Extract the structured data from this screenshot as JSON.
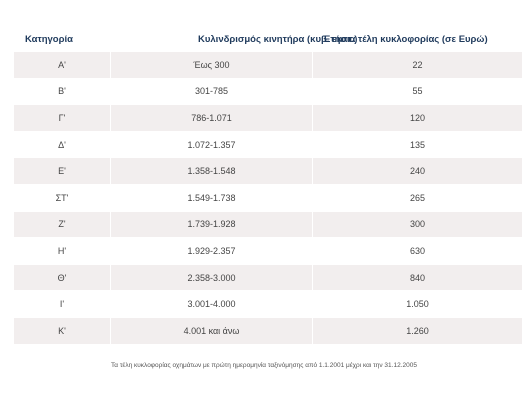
{
  "table": {
    "headers": {
      "category": "Κατηγορία",
      "engine": "Κυλινδρισμός κινητήρα (κυβ. εκατ.)",
      "fee": "Ετήσια τέλη κυκλοφορίας (σε Ευρώ)"
    },
    "rows": [
      {
        "category": "Α'",
        "engine": "Έως 300",
        "fee": "22"
      },
      {
        "category": "Β'",
        "engine": "301-785",
        "fee": "55"
      },
      {
        "category": "Γ'",
        "engine": "786-1.071",
        "fee": "120"
      },
      {
        "category": "Δ'",
        "engine": "1.072-1.357",
        "fee": "135"
      },
      {
        "category": "Ε'",
        "engine": "1.358-1.548",
        "fee": "240"
      },
      {
        "category": "ΣΤ'",
        "engine": "1.549-1.738",
        "fee": "265"
      },
      {
        "category": "Ζ'",
        "engine": "1.739-1.928",
        "fee": "300"
      },
      {
        "category": "Η'",
        "engine": "1.929-2.357",
        "fee": "630"
      },
      {
        "category": "Θ'",
        "engine": "2.358-3.000",
        "fee": "840"
      },
      {
        "category": "Ι'",
        "engine": "3.001-4.000",
        "fee": "1.050"
      },
      {
        "category": "Κ'",
        "engine": "4.001 και άνω",
        "fee": "1.260"
      }
    ]
  },
  "footnote": "Τα τέλη κυκλοφορίας οχημάτων με πρώτη ημερομηνία ταξινόμησης από 1.1.2001 μέχρι και την 31.12.2005",
  "colors": {
    "header_text": "#1f3a5c",
    "row_shaded": "#f2eeee",
    "row_plain": "#ffffff"
  }
}
